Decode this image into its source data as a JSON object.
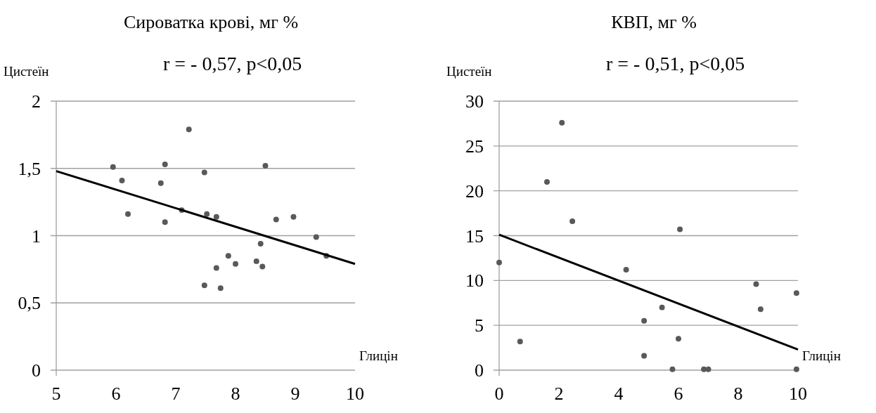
{
  "chart_data": [
    {
      "type": "scatter",
      "title": "Сироватка крові, мг %",
      "annotations": [
        "r = - 0,57, p<0,05"
      ],
      "ylabel": "Цистеїн",
      "xlabel": "Глицін",
      "xlim": [
        5,
        10
      ],
      "xticks": [
        5,
        6,
        7,
        8,
        9,
        10
      ],
      "ylim": [
        0,
        2
      ],
      "yticks": [
        0,
        {
          "value": 0.5,
          "label": "0,5"
        },
        1,
        {
          "value": 1.5,
          "label": "1,5"
        },
        2
      ],
      "grid": "y",
      "series": [
        {
          "color": "#595959",
          "marker": "circle",
          "x": [
            5.95,
            6.1,
            6.2,
            6.75,
            6.82,
            6.82,
            7.1,
            7.22,
            7.48,
            7.52,
            7.48,
            7.68,
            7.68,
            7.75,
            7.88,
            8.0,
            8.35,
            8.42,
            8.45,
            8.5,
            8.68,
            8.97,
            9.35,
            9.52
          ],
          "values": [
            1.51,
            1.41,
            1.16,
            1.39,
            1.53,
            1.1,
            1.19,
            1.79,
            1.47,
            1.16,
            0.63,
            1.14,
            0.76,
            0.61,
            0.85,
            0.79,
            0.81,
            0.94,
            0.77,
            1.52,
            1.12,
            1.14,
            0.99,
            0.85
          ]
        },
        {
          "type": "line",
          "color": "#000000",
          "marker": "none",
          "x": [
            5,
            10
          ],
          "values": [
            1.48,
            0.79
          ]
        }
      ]
    },
    {
      "type": "scatter",
      "title": "КВП, мг %",
      "annotations": [
        "r = - 0,51, p<0,05"
      ],
      "ylabel": "Цистеїн",
      "xlabel": "Глицін",
      "xlim": [
        0,
        10
      ],
      "xticks": [
        0,
        2,
        4,
        6,
        8,
        10
      ],
      "ylim": [
        0,
        30
      ],
      "yticks": [
        0,
        5,
        10,
        15,
        20,
        25,
        30
      ],
      "grid": "y",
      "series": [
        {
          "color": "#595959",
          "marker": "circle",
          "x": [
            0,
            0.7,
            1.6,
            2.1,
            2.45,
            4.25,
            4.85,
            4.85,
            5.45,
            5.8,
            6.05,
            6.0,
            6.85,
            7.0,
            8.6,
            8.75,
            9.95,
            9.95
          ],
          "values": [
            12.0,
            3.2,
            21.0,
            27.6,
            16.6,
            11.2,
            5.5,
            1.6,
            7.0,
            0.1,
            15.7,
            3.5,
            0.1,
            0.1,
            9.6,
            6.8,
            8.6,
            0.1
          ]
        },
        {
          "type": "line",
          "color": "#000000",
          "marker": "none",
          "x": [
            0,
            10
          ],
          "values": [
            15.1,
            2.3
          ]
        }
      ]
    }
  ]
}
